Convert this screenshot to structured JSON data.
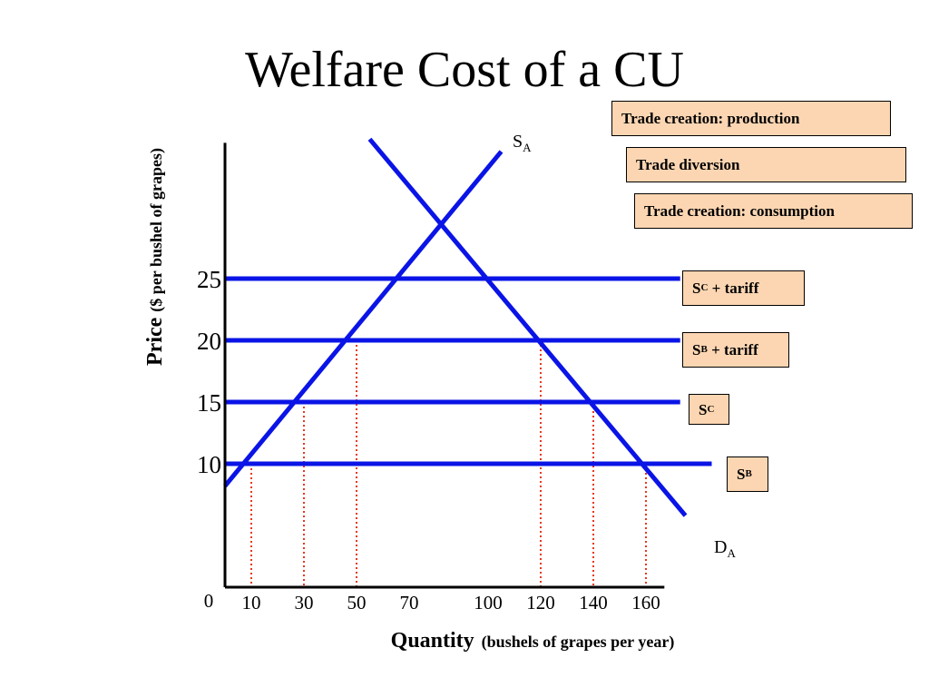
{
  "title": "Welfare Cost of a CU",
  "legend_boxes": {
    "production": "Trade creation: production",
    "diversion": "Trade diversion",
    "consumption": "Trade creation: consumption"
  },
  "curve_labels": {
    "supply_a": {
      "base": "S",
      "sub": "A",
      "suffix": ""
    },
    "demand_a": {
      "base": "D",
      "sub": "A",
      "suffix": ""
    },
    "sc_tariff": {
      "base": "S",
      "sub": "C",
      "suffix": " + tariff"
    },
    "sb_tariff": {
      "base": "S",
      "sub": "B",
      "suffix": " + tariff"
    },
    "sc": {
      "base": "S",
      "sub": "C",
      "suffix": ""
    },
    "sb": {
      "base": "S",
      "sub": "B",
      "suffix": ""
    }
  },
  "colors": {
    "curve": "#0a14e6",
    "dotted": "#e8381c",
    "legend_fill": "#fcd6b2",
    "axis": "#000000"
  },
  "chart_data": {
    "type": "line",
    "xlabel": "Quantity",
    "xlabel_note": "(bushels of grapes per year)",
    "ylabel": "Price",
    "ylabel_note": "($ per bushel of  grapes)",
    "origin_label": "0",
    "x_ticks": [
      10,
      30,
      50,
      70,
      100,
      120,
      140,
      160
    ],
    "y_ticks": [
      10,
      15,
      20,
      25
    ],
    "xlim": [
      0,
      168
    ],
    "ylim": [
      0,
      36
    ],
    "grid": false,
    "series": [
      {
        "name": "SA",
        "points": [
          [
            0,
            8.2
          ],
          [
            105,
            35.3
          ]
        ]
      },
      {
        "name": "DA",
        "points": [
          [
            55,
            36.3
          ],
          [
            175,
            5.8
          ]
        ]
      },
      {
        "name": "SC + tariff",
        "points": [
          [
            0,
            25
          ],
          [
            173,
            25
          ]
        ]
      },
      {
        "name": "SB + tariff",
        "points": [
          [
            0,
            20
          ],
          [
            173,
            20
          ]
        ]
      },
      {
        "name": "SC",
        "points": [
          [
            0,
            15
          ],
          [
            173,
            15
          ]
        ]
      },
      {
        "name": "SB",
        "points": [
          [
            0,
            10
          ],
          [
            185,
            10
          ]
        ]
      }
    ],
    "reference_lines": [
      {
        "x": 10,
        "y": 10
      },
      {
        "x": 30,
        "y": 15
      },
      {
        "x": 50,
        "y": 20
      },
      {
        "x": 120,
        "y": 20
      },
      {
        "x": 140,
        "y": 15
      },
      {
        "x": 160,
        "y": 10
      }
    ]
  }
}
